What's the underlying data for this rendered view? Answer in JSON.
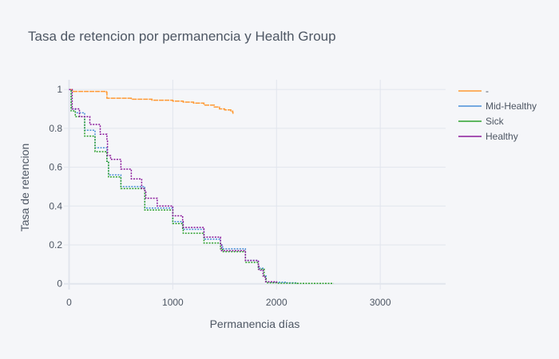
{
  "chart_data": {
    "type": "line",
    "title": "Tasa de retencion por permanencia y Health Group",
    "xlabel": "Permanencia días",
    "ylabel": "Tasa de retencion",
    "xlim": [
      -50,
      3630
    ],
    "ylim": [
      -0.03,
      1.05
    ],
    "x_ticks": [
      0,
      1000,
      2000,
      3000
    ],
    "y_ticks": [
      0,
      0.2,
      0.4,
      0.6,
      0.8,
      1
    ],
    "grid": true,
    "legend_position": "top-right",
    "series": [
      {
        "name": "-",
        "color": "#ff9933",
        "x": [
          0,
          30,
          360,
          365,
          380,
          600,
          800,
          1000,
          1100,
          1200,
          1300,
          1400,
          1450,
          1500,
          1560,
          1575,
          1580
        ],
        "y": [
          1.0,
          0.99,
          0.985,
          0.955,
          0.955,
          0.95,
          0.945,
          0.94,
          0.935,
          0.93,
          0.92,
          0.91,
          0.9,
          0.895,
          0.89,
          0.885,
          0.875
        ]
      },
      {
        "name": "Mid-Healthy",
        "color": "#4a8fd8",
        "x": [
          0,
          20,
          60,
          150,
          250,
          365,
          380,
          500,
          730,
          1000,
          1095,
          1100,
          1300,
          1460,
          1480,
          1700,
          1825,
          1880,
          1900,
          1950,
          2100,
          2200
        ],
        "y": [
          1.0,
          0.9,
          0.88,
          0.79,
          0.7,
          0.63,
          0.56,
          0.5,
          0.39,
          0.32,
          0.3,
          0.28,
          0.23,
          0.2,
          0.18,
          0.12,
          0.08,
          0.04,
          0.01,
          0.008,
          0.005,
          0.004
        ]
      },
      {
        "name": "Sick",
        "color": "#2ca02c",
        "x": [
          0,
          20,
          60,
          150,
          250,
          365,
          380,
          500,
          730,
          1000,
          1095,
          1100,
          1300,
          1460,
          1480,
          1700,
          1825,
          1880,
          1900,
          2000,
          2200,
          2550
        ],
        "y": [
          1.0,
          0.89,
          0.86,
          0.76,
          0.68,
          0.63,
          0.55,
          0.49,
          0.38,
          0.31,
          0.28,
          0.26,
          0.21,
          0.18,
          0.165,
          0.11,
          0.075,
          0.035,
          0.005,
          0.003,
          0.002,
          0.002
        ]
      },
      {
        "name": "Healthy",
        "color": "#8b1a9b",
        "x": [
          0,
          20,
          30,
          100,
          200,
          300,
          365,
          370,
          400,
          500,
          600,
          700,
          730,
          740,
          850,
          1000,
          1095,
          1100,
          1300,
          1460,
          1470,
          1700,
          1825,
          1830,
          1870,
          1890,
          1895,
          2000
        ],
        "y": [
          1.0,
          1.0,
          0.9,
          0.86,
          0.82,
          0.77,
          0.74,
          0.66,
          0.64,
          0.59,
          0.54,
          0.49,
          0.48,
          0.44,
          0.4,
          0.35,
          0.32,
          0.29,
          0.24,
          0.2,
          0.17,
          0.12,
          0.09,
          0.07,
          0.04,
          0.03,
          0.01,
          0.005
        ]
      }
    ]
  }
}
